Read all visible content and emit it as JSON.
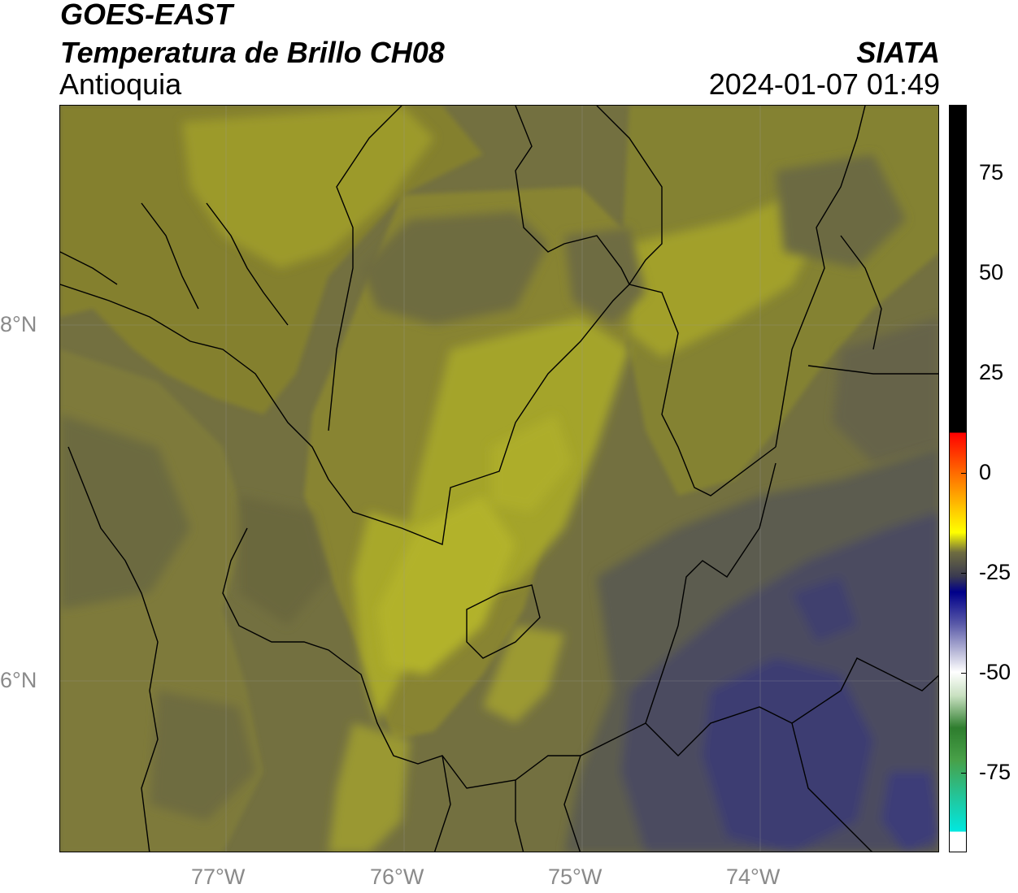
{
  "header": {
    "satellite": "GOES-EAST",
    "product": "Temperatura de Brillo CH08",
    "region": "Antioquia",
    "agency": "SIATA",
    "datetime": "2024-01-07 01:49"
  },
  "map": {
    "lon_ticks": [
      "77°W",
      "76°W",
      "75°W",
      "74°W"
    ],
    "lat_ticks": [
      "8°N",
      "6°N"
    ],
    "colors": {
      "dark_olive": "#6f6b3b",
      "mid_olive": "#848132",
      "light_olive": "#a0a02a",
      "bright_yellow": "#b4b428",
      "grey": "#5c5a4e",
      "blue_grey": "#4a4a62",
      "deep_blue": "#3a3a78"
    }
  },
  "colorbar": {
    "ticks": [
      "75",
      "50",
      "25",
      "0",
      "-25",
      "-50",
      "-75"
    ],
    "tick_values": [
      75,
      50,
      25,
      0,
      -25,
      -50,
      -75
    ],
    "range": [
      -95,
      92
    ]
  }
}
